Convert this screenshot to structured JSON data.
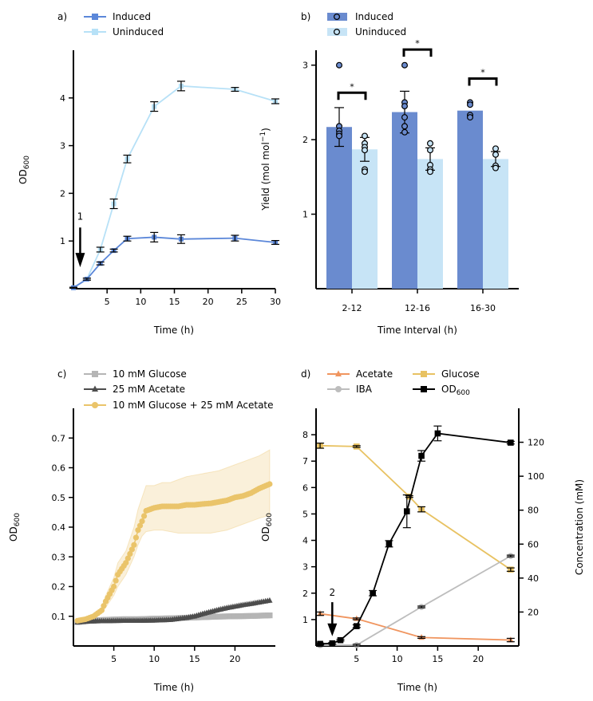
{
  "panels": {
    "a": {
      "tag": "a)",
      "xlabel": "Time (h)",
      "ylabel": "OD",
      "ylabel_sub": "600",
      "annotation": "1",
      "legend": [
        {
          "name": "Induced",
          "color": "#5b87d9"
        },
        {
          "name": "Uninduced",
          "color": "#b7e1f7"
        }
      ]
    },
    "b": {
      "tag": "b)",
      "xlabel": "Time Interval (h)",
      "ylabel": "Yield (mol mol",
      "ylabel_sup": "−1",
      "ylabel_end": ")",
      "sig": [
        "*",
        "*",
        "*"
      ],
      "legend": [
        {
          "name": "Induced",
          "color": "#6a8bcf"
        },
        {
          "name": "Uninduced",
          "color": "#c7e4f6"
        }
      ]
    },
    "c": {
      "tag": "c)",
      "xlabel": "Time (h)",
      "ylabel": "OD",
      "ylabel_sub": "600",
      "legend": [
        {
          "name": "10 mM Glucose",
          "color": "#b5b5b5"
        },
        {
          "name": "25 mM Acetate",
          "color": "#4d4d4d"
        },
        {
          "name": "10 mM Glucose + 25 mM Acetate",
          "color": "#eac46a"
        }
      ]
    },
    "d": {
      "tag": "d)",
      "xlabel": "Time (h)",
      "ylabel": "OD",
      "ylabel_sub": "600",
      "ylabel_right": "Concentration (mM)",
      "annotation": "2",
      "legend": [
        {
          "name": "Acetate",
          "color": "#f0955f"
        },
        {
          "name": "Glucose",
          "color": "#e8c262"
        },
        {
          "name": "IBA",
          "color": "#bdbdbd"
        },
        {
          "name": "OD",
          "sub": "600",
          "color": "#000000"
        }
      ]
    }
  },
  "chart_data": [
    {
      "panel": "a",
      "type": "line",
      "xlabel": "Time (h)",
      "ylabel": "OD600",
      "xlim": [
        0,
        30
      ],
      "ylim": [
        0,
        5
      ],
      "xticks": [
        5,
        10,
        15,
        20,
        25,
        30
      ],
      "yticks": [
        1,
        2,
        3,
        4
      ],
      "series": [
        {
          "name": "Induced",
          "color": "#5b87d9",
          "x": [
            0,
            2,
            4,
            6,
            8,
            12,
            16,
            24,
            30
          ],
          "y": [
            0.02,
            0.2,
            0.53,
            0.8,
            1.05,
            1.08,
            1.04,
            1.06,
            0.97
          ],
          "err": [
            0.01,
            0.02,
            0.03,
            0.03,
            0.05,
            0.1,
            0.09,
            0.06,
            0.04
          ]
        },
        {
          "name": "Uninduced",
          "color": "#b7e1f7",
          "x": [
            0,
            2,
            4,
            6,
            8,
            12,
            16,
            24,
            30
          ],
          "y": [
            0.02,
            0.2,
            0.82,
            1.78,
            2.72,
            3.82,
            4.25,
            4.18,
            3.93
          ],
          "err": [
            0.01,
            0.02,
            0.05,
            0.1,
            0.08,
            0.1,
            0.1,
            0.04,
            0.05
          ]
        }
      ],
      "annotation": {
        "text": "1",
        "x": 1,
        "y_text": 1.45
      }
    },
    {
      "panel": "b",
      "type": "bar",
      "xlabel": "Time Interval (h)",
      "ylabel": "Yield (mol mol−1)",
      "categories": [
        "2-12",
        "12-16",
        "16-30"
      ],
      "ylim": [
        0,
        3.2
      ],
      "yticks": [
        1,
        2,
        3
      ],
      "series": [
        {
          "name": "Induced",
          "color": "#6a8bcf",
          "values": [
            2.17,
            2.37,
            2.39
          ],
          "err": [
            0.26,
            0.28,
            0.0
          ],
          "points": [
            [
              3.0,
              2.18,
              2.12,
              2.08,
              2.05
            ],
            [
              3.0,
              2.5,
              2.45,
              2.3,
              2.18,
              2.1
            ],
            [
              2.5,
              2.47,
              2.33,
              2.3
            ]
          ]
        },
        {
          "name": "Uninduced",
          "color": "#c7e4f6",
          "values": [
            1.87,
            1.74,
            1.74
          ],
          "err": [
            0.16,
            0.15,
            0.1
          ],
          "points": [
            [
              2.05,
              1.95,
              1.9,
              1.86,
              1.6,
              1.57
            ],
            [
              1.95,
              1.86,
              1.66,
              1.6,
              1.57
            ],
            [
              1.88,
              1.8,
              1.65,
              1.62
            ]
          ]
        }
      ],
      "significance": [
        "*",
        "*",
        "*"
      ]
    },
    {
      "panel": "c",
      "type": "scatter",
      "xlabel": "Time (h)",
      "ylabel": "OD600",
      "xlim": [
        0,
        25
      ],
      "ylim": [
        0,
        0.8
      ],
      "xticks": [
        5,
        10,
        15,
        20
      ],
      "yticks": [
        0.1,
        0.2,
        0.3,
        0.4,
        0.5,
        0.6,
        0.7
      ],
      "series": [
        {
          "name": "10 mM Glucose",
          "color": "#b5b5b5",
          "marker": "square",
          "x": [
            0.5,
            2,
            4,
            6,
            8,
            10,
            12,
            14,
            16,
            18,
            20,
            22,
            24.3
          ],
          "y": [
            0.08,
            0.085,
            0.088,
            0.09,
            0.09,
            0.092,
            0.093,
            0.095,
            0.097,
            0.099,
            0.1,
            0.101,
            0.103
          ]
        },
        {
          "name": "25 mM Acetate",
          "color": "#4d4d4d",
          "marker": "triangle",
          "x": [
            0.5,
            2,
            4,
            6,
            8,
            10,
            12,
            14,
            15,
            16,
            17,
            18,
            19,
            20,
            21,
            22,
            23,
            24.3
          ],
          "y": [
            0.08,
            0.083,
            0.084,
            0.085,
            0.085,
            0.086,
            0.088,
            0.095,
            0.1,
            0.108,
            0.115,
            0.122,
            0.128,
            0.133,
            0.138,
            0.142,
            0.147,
            0.153
          ]
        },
        {
          "name": "10 mM Glucose + 25 mM Acetate",
          "color": "#eac46a",
          "marker": "circle",
          "x": [
            0.5,
            1.5,
            2.5,
            3.5,
            4,
            5,
            5.5,
            6,
            6.5,
            7,
            7.5,
            8,
            8.5,
            9,
            10,
            11,
            12,
            13,
            14,
            15,
            16,
            17,
            18,
            19,
            20,
            21,
            22,
            23,
            24.3
          ],
          "y": [
            0.085,
            0.09,
            0.1,
            0.12,
            0.15,
            0.2,
            0.24,
            0.26,
            0.28,
            0.31,
            0.34,
            0.39,
            0.42,
            0.455,
            0.465,
            0.47,
            0.47,
            0.47,
            0.475,
            0.475,
            0.478,
            0.48,
            0.485,
            0.49,
            0.5,
            0.505,
            0.515,
            0.53,
            0.545
          ],
          "lower": [
            0.083,
            0.088,
            0.095,
            0.11,
            0.13,
            0.17,
            0.2,
            0.22,
            0.24,
            0.27,
            0.3,
            0.34,
            0.37,
            0.385,
            0.39,
            0.39,
            0.385,
            0.38,
            0.38,
            0.38,
            0.38,
            0.38,
            0.385,
            0.39,
            0.4,
            0.41,
            0.42,
            0.43,
            0.44
          ],
          "upper": [
            0.087,
            0.092,
            0.105,
            0.13,
            0.17,
            0.23,
            0.28,
            0.3,
            0.32,
            0.36,
            0.4,
            0.46,
            0.5,
            0.54,
            0.54,
            0.55,
            0.55,
            0.56,
            0.57,
            0.575,
            0.58,
            0.585,
            0.59,
            0.6,
            0.61,
            0.62,
            0.63,
            0.64,
            0.66
          ]
        }
      ]
    },
    {
      "panel": "d",
      "type": "line",
      "xlabel": "Time (h)",
      "ylabel": "OD600",
      "ylabel_right": "Concentration (mM)",
      "xlim": [
        0,
        25
      ],
      "ylim": [
        0,
        9
      ],
      "ylim_right": [
        0,
        140
      ],
      "xticks": [
        5,
        10,
        15,
        20
      ],
      "yticks": [
        1,
        2,
        3,
        4,
        5,
        6,
        7,
        8
      ],
      "yticks_right": [
        20,
        40,
        60,
        80,
        100,
        120
      ],
      "series": [
        {
          "name": "Acetate",
          "color": "#f0955f",
          "marker": "triangle",
          "axis": "right",
          "x": [
            0.5,
            5,
            13,
            24
          ],
          "y": [
            19,
            16,
            5,
            3.5
          ],
          "err": [
            1,
            0.5,
            0.5,
            1
          ]
        },
        {
          "name": "Glucose",
          "color": "#e8c262",
          "marker": "square",
          "axis": "right",
          "x": [
            0.5,
            5,
            11.5,
            13,
            24
          ],
          "y": [
            118,
            117.5,
            88,
            80.5,
            45
          ],
          "err": [
            1.5,
            0.5,
            0.5,
            1.5,
            1
          ]
        },
        {
          "name": "IBA",
          "color": "#bdbdbd",
          "marker": "circle",
          "axis": "right",
          "x": [
            0.5,
            5,
            13,
            24
          ],
          "y": [
            0.5,
            0.5,
            23,
            53
          ],
          "err": [
            0.5,
            0.5,
            0.5,
            0.5
          ]
        },
        {
          "name": "OD600",
          "color": "#000000",
          "marker": "square",
          "axis": "left",
          "x": [
            0.5,
            2,
            3,
            5,
            7,
            9,
            11.2,
            13,
            15,
            24
          ],
          "y": [
            0.08,
            0.1,
            0.22,
            0.75,
            2.0,
            3.87,
            5.1,
            7.2,
            8.05,
            7.7
          ],
          "err": [
            0.03,
            0.03,
            0.03,
            0.05,
            0.1,
            0.12,
            0.62,
            0.2,
            0.28,
            0.05
          ]
        }
      ],
      "annotation": {
        "text": "2",
        "x": 2,
        "y_text": 1.9
      }
    }
  ]
}
